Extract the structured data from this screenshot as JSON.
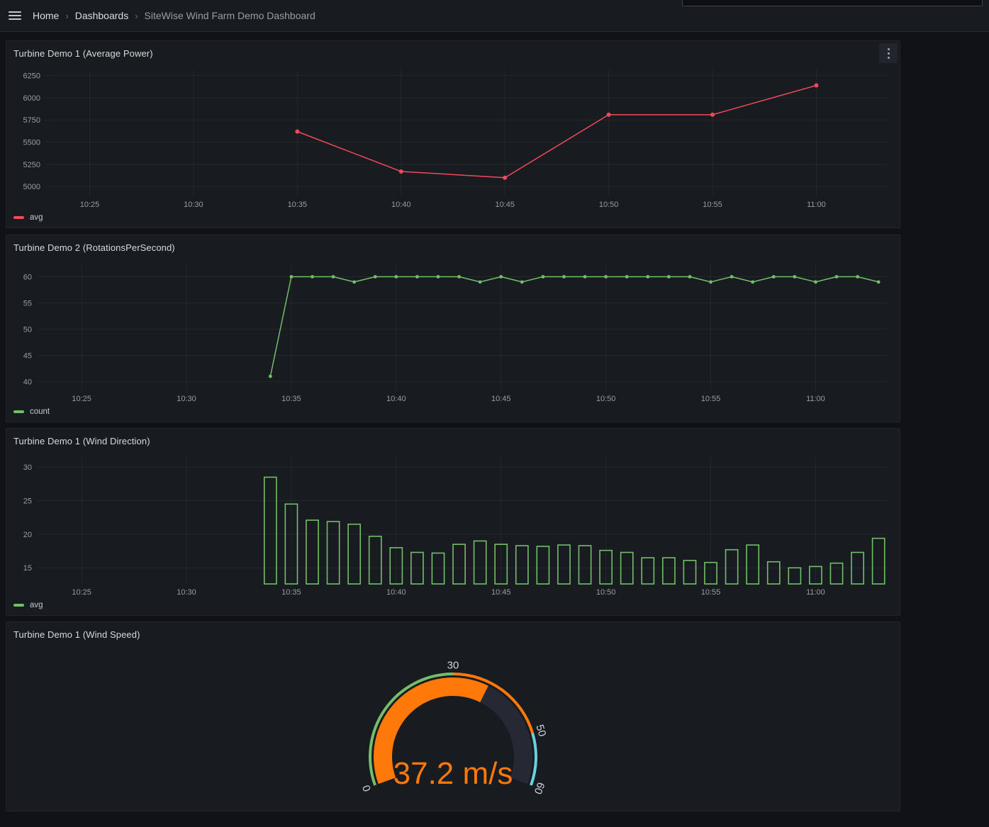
{
  "breadcrumb": {
    "separator": "›",
    "items": [
      "Home",
      "Dashboards",
      "SiteWise Wind Farm Demo Dashboard"
    ]
  },
  "axis_style": {
    "tick_color": "#9a9da5",
    "grid_color": "rgba(204,204,220,0.07)"
  },
  "chart_data": [
    {
      "type": "line",
      "title": "Turbine Demo 1 (Average Power)",
      "x_ticks": [
        "10:25",
        "10:30",
        "10:35",
        "10:40",
        "10:45",
        "10:50",
        "10:55",
        "11:00"
      ],
      "xlim_minutes": [
        622.9,
        663.4
      ],
      "y_ticks": [
        5000,
        5250,
        5500,
        5750,
        6000,
        6250
      ],
      "ylim": [
        4890,
        6320
      ],
      "grid": true,
      "legend_position": "bottom",
      "series": [
        {
          "name": "avg",
          "color": "#F2495C",
          "x": [
            "10:35",
            "10:40",
            "10:45",
            "10:50",
            "10:55",
            "11:00"
          ],
          "values": [
            5620,
            5170,
            5100,
            5810,
            5810,
            6140
          ]
        }
      ]
    },
    {
      "type": "line",
      "title": "Turbine Demo 2 (RotationsPerSecond)",
      "x_ticks": [
        "10:25",
        "10:30",
        "10:35",
        "10:40",
        "10:45",
        "10:50",
        "10:55",
        "11:00"
      ],
      "xlim_minutes": [
        622.9,
        663.4
      ],
      "y_ticks": [
        40,
        45,
        50,
        55,
        60
      ],
      "ylim": [
        38.3,
        62.5
      ],
      "grid": true,
      "legend_position": "bottom",
      "series": [
        {
          "name": "count",
          "color": "#73BF69",
          "x": [
            "10:34",
            "10:35",
            "10:36",
            "10:37",
            "10:38",
            "10:39",
            "10:40",
            "10:41",
            "10:42",
            "10:43",
            "10:44",
            "10:45",
            "10:46",
            "10:47",
            "10:48",
            "10:49",
            "10:50",
            "10:51",
            "10:52",
            "10:53",
            "10:54",
            "10:55",
            "10:56",
            "10:57",
            "10:58",
            "10:59",
            "11:00",
            "11:01",
            "11:02",
            "11:03"
          ],
          "values": [
            41,
            60,
            60,
            60,
            59,
            60,
            60,
            60,
            60,
            60,
            59,
            60,
            59,
            60,
            60,
            60,
            60,
            60,
            60,
            60,
            60,
            59,
            60,
            59,
            60,
            60,
            59,
            60,
            60,
            59
          ]
        }
      ]
    },
    {
      "type": "bar",
      "title": "Turbine Demo 1 (Wind Direction)",
      "x_ticks": [
        "10:25",
        "10:30",
        "10:35",
        "10:40",
        "10:45",
        "10:50",
        "10:55",
        "11:00"
      ],
      "xlim_minutes": [
        622.9,
        663.4
      ],
      "y_ticks": [
        15,
        20,
        25,
        30
      ],
      "ylim": [
        12.6,
        31.5
      ],
      "grid": true,
      "legend_position": "bottom",
      "categories": [
        "10:34",
        "10:35",
        "10:36",
        "10:37",
        "10:38",
        "10:39",
        "10:40",
        "10:41",
        "10:42",
        "10:43",
        "10:44",
        "10:45",
        "10:46",
        "10:47",
        "10:48",
        "10:49",
        "10:50",
        "10:51",
        "10:52",
        "10:53",
        "10:54",
        "10:55",
        "10:56",
        "10:57",
        "10:58",
        "10:59",
        "11:00",
        "11:01",
        "11:02",
        "11:03"
      ],
      "series": [
        {
          "name": "avg",
          "color": "#73BF69",
          "values": [
            28.5,
            24.5,
            22.1,
            21.9,
            21.5,
            19.7,
            18.0,
            17.3,
            17.2,
            18.5,
            19.0,
            18.5,
            18.3,
            18.2,
            18.4,
            18.3,
            17.6,
            17.3,
            16.5,
            16.5,
            16.1,
            15.8,
            17.7,
            18.4,
            15.9,
            15.0,
            15.2,
            15.7,
            17.3,
            19.4
          ]
        }
      ]
    },
    {
      "type": "gauge",
      "title": "Turbine Demo 1 (Wind Speed)",
      "value": 37.2,
      "unit": "m/s",
      "display_text": "37.2 m/s",
      "min": 0,
      "max": 60,
      "tick_labels": [
        0,
        30,
        50,
        60
      ],
      "tick_label_color": "#d2d3d7",
      "track_color": "#262933",
      "thresholds": [
        {
          "from": 0,
          "to": 30,
          "color": "#73BF69"
        },
        {
          "from": 30,
          "to": 50,
          "color": "#FF780A"
        },
        {
          "from": 50,
          "to": 60,
          "color": "#6CCFE0"
        }
      ]
    }
  ]
}
